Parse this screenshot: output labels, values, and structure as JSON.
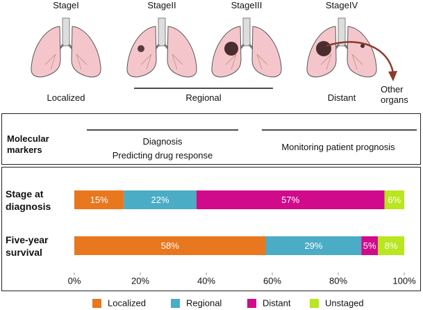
{
  "stages": [
    {
      "name": "StageI",
      "label": "Localized"
    },
    {
      "name": "StageII"
    },
    {
      "name": "StageIII"
    },
    {
      "name": "StageIV",
      "label": "Distant"
    }
  ],
  "regional_label": "Regional",
  "metastasis_label": "Other\norgans",
  "markers": {
    "title": "Molecular\nmarkers",
    "early": "Diagnosis\nPredicting drug response",
    "late": "Monitoring patient prognosis"
  },
  "chart_data": {
    "type": "stacked_barh",
    "categories": [
      "Stage at\ndiagnosis",
      "Five-year\nsurvival"
    ],
    "series": [
      {
        "name": "Localized",
        "color": "#e8771e",
        "values": [
          15,
          58
        ],
        "value_labels": [
          "15%",
          "58%"
        ]
      },
      {
        "name": "Regional",
        "color": "#4bacc6",
        "values": [
          22,
          29
        ],
        "value_labels": [
          "22%",
          "29%"
        ]
      },
      {
        "name": "Distant",
        "color": "#d10a8c",
        "values": [
          57,
          5
        ],
        "value_labels": [
          "57%",
          "5%"
        ]
      },
      {
        "name": "Unstaged",
        "color": "#b8e61f",
        "values": [
          6,
          8
        ],
        "value_labels": [
          "6%",
          "8%"
        ]
      }
    ],
    "xlim": [
      0,
      100
    ],
    "xticks": [
      {
        "value": 0,
        "label": "0%"
      },
      {
        "value": 20,
        "label": "20%"
      },
      {
        "value": 40,
        "label": "40%"
      },
      {
        "value": 60,
        "label": "60%"
      },
      {
        "value": 80,
        "label": "80%"
      },
      {
        "value": 100,
        "label": "100%"
      }
    ],
    "legend": "bottom"
  }
}
